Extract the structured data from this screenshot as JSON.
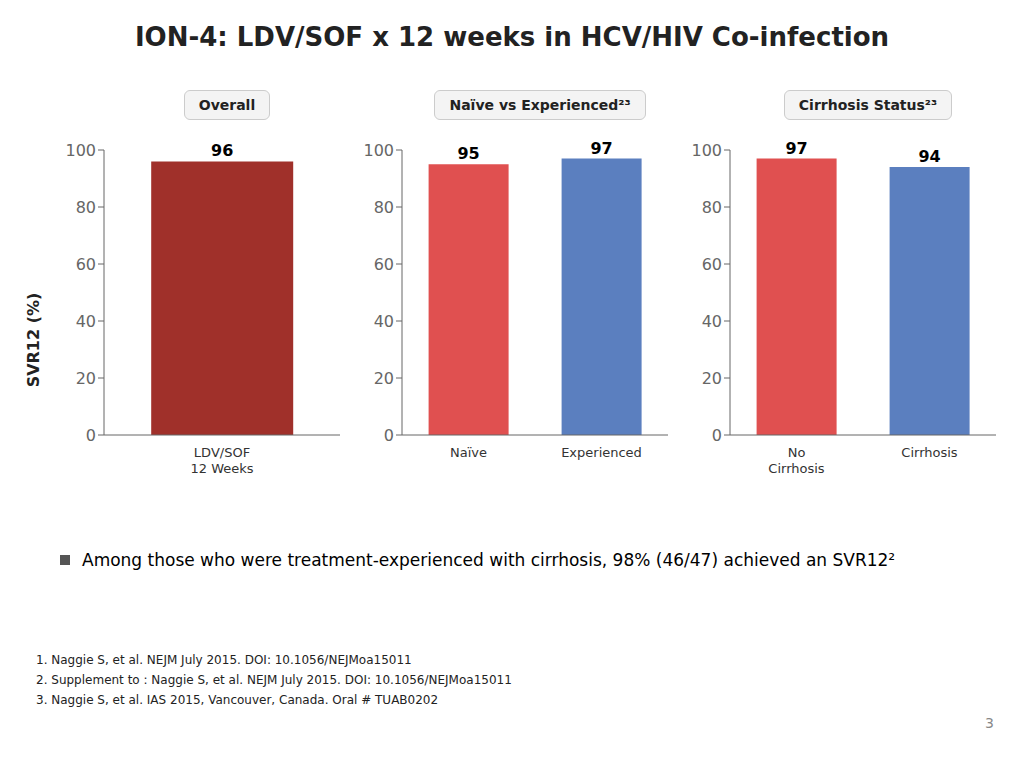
{
  "title": "ION-4: LDV/SOF x 12 weeks in HCV/HIV Co-infection",
  "ylabel": "SVR12 (%)",
  "annotations": [
    "Among those who were treatment-experienced with cirrhosis, 98% (46/47) achieved an SVR12²",
    "1. Naggie S, et al. NEJM July 2015. DOI: 10.1056/NEJMoa15011",
    "2. Supplement to : Naggie S, et al. NEJM July 2015. DOI: 10.1056/NEJMoa15011",
    "3. Naggie S, et al. IAS 2015, Vancouver, Canada. Oral # TUAB0202",
    "3"
  ],
  "chart_data": [
    {
      "type": "bar",
      "title": "Overall",
      "categories": [
        "LDV/SOF\n12 Weeks"
      ],
      "values": [
        96
      ],
      "colors": [
        "#A0302A"
      ],
      "ylim": [
        0,
        100
      ],
      "yticks": [
        0,
        20,
        40,
        60,
        80,
        100
      ],
      "grid": false,
      "data_labels": true
    },
    {
      "type": "bar",
      "title": "Naïve vs Experienced²³",
      "categories": [
        "Naïve",
        "Experienced"
      ],
      "values": [
        95,
        97
      ],
      "colors": [
        "#E05050",
        "#5B7FBF"
      ],
      "ylim": [
        0,
        100
      ],
      "yticks": [
        0,
        20,
        40,
        60,
        80,
        100
      ],
      "grid": false,
      "data_labels": true
    },
    {
      "type": "bar",
      "title": "Cirrhosis Status²³",
      "categories": [
        "No\nCirrhosis",
        "Cirrhosis"
      ],
      "values": [
        97,
        94
      ],
      "colors": [
        "#E05050",
        "#5B7FBF"
      ],
      "ylim": [
        0,
        100
      ],
      "yticks": [
        0,
        20,
        40,
        60,
        80,
        100
      ],
      "grid": false,
      "data_labels": true
    }
  ]
}
